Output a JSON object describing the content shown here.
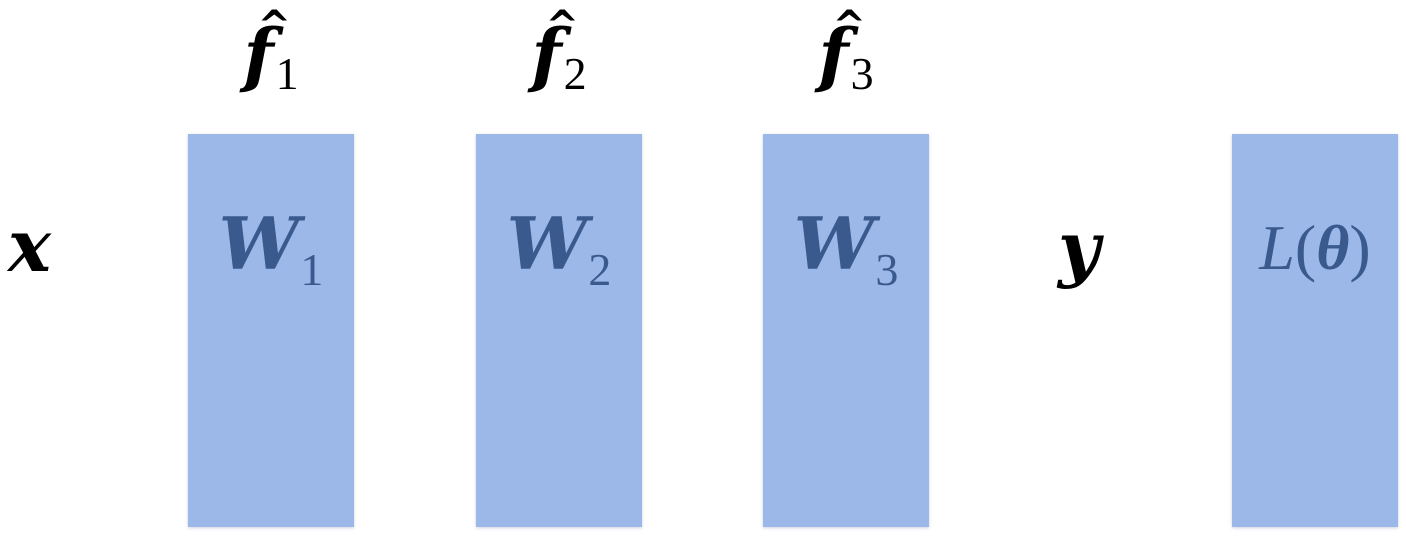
{
  "colors": {
    "block_fill": "#9bb8e8",
    "block_text": "#3a5a8e",
    "variable_text": "#000000",
    "background": "#ffffff"
  },
  "input": {
    "symbol": "x",
    "sub": ""
  },
  "target": {
    "symbol": "y",
    "sub": ""
  },
  "layers": [
    {
      "weight_symbol": "W",
      "weight_sub": "1",
      "output_symbol": "f",
      "output_sub": "1",
      "output_accent": "^"
    },
    {
      "weight_symbol": "W",
      "weight_sub": "2",
      "output_symbol": "f",
      "output_sub": "2",
      "output_accent": "^"
    },
    {
      "weight_symbol": "W",
      "weight_sub": "3",
      "output_symbol": "f",
      "output_sub": "3",
      "output_accent": "^"
    }
  ],
  "loss": {
    "name": "L",
    "open_paren": "(",
    "param": "θ",
    "close_paren": ")"
  }
}
